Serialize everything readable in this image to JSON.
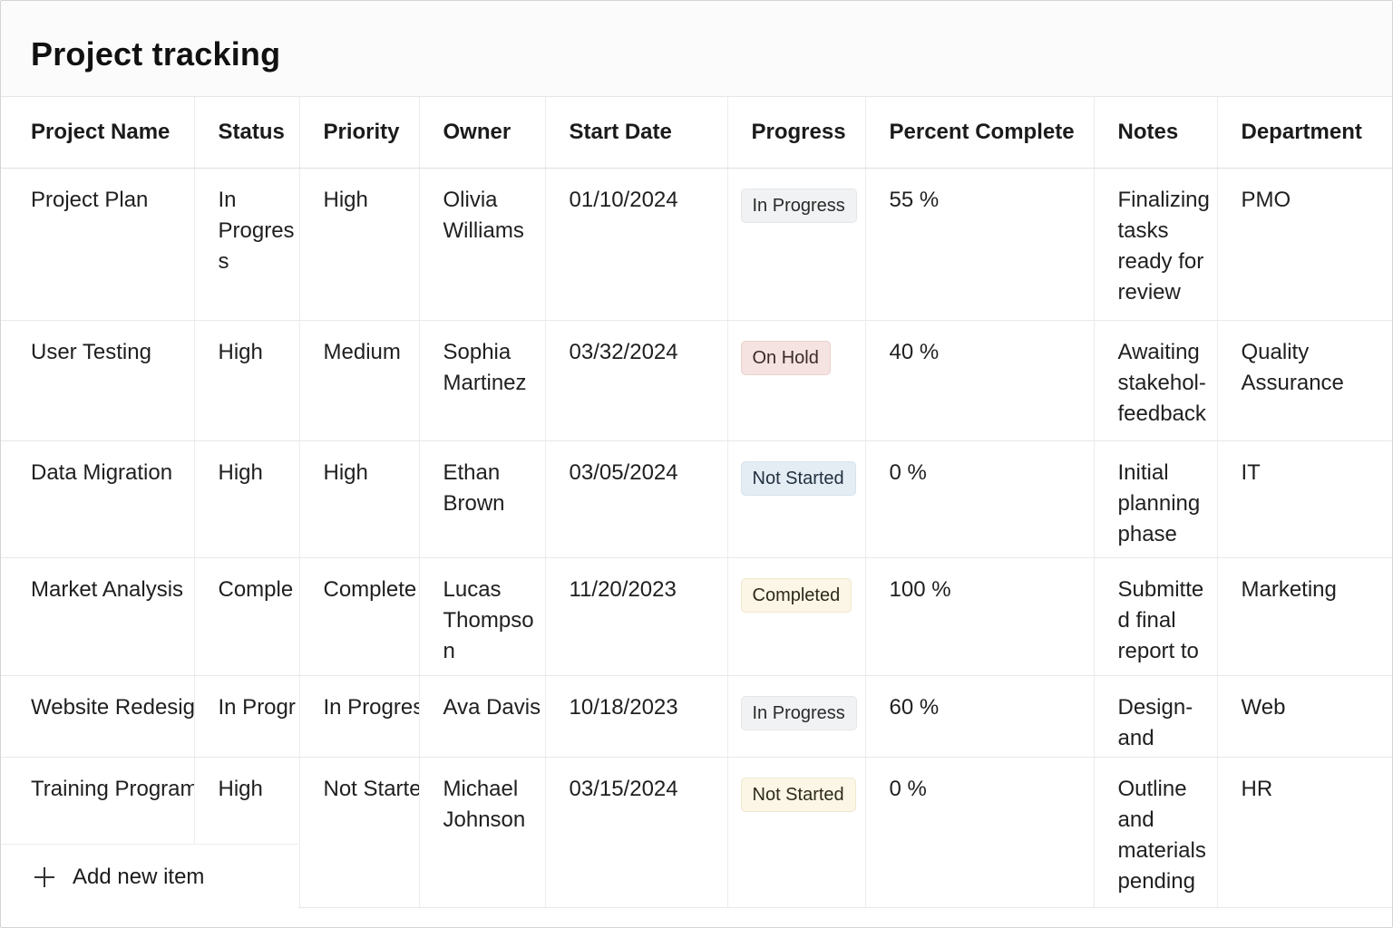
{
  "page": {
    "title": "Project tracking"
  },
  "table": {
    "columns": [
      "Project Name",
      "Status",
      "Priority",
      "Owner",
      "Start Date",
      "Progress",
      "Percent Complete",
      "Notes",
      "Department"
    ],
    "rows": [
      {
        "name": "Project Plan",
        "status": "In Progress",
        "priority": "High",
        "owner": "Olivia Williams",
        "start_date": "01/10/2024",
        "progress": "In Progress",
        "percent": "55 %",
        "notes": "Finalizing tasks ready for review",
        "department": "PMO"
      },
      {
        "name": "User Testing",
        "status": "High",
        "priority": "Medium",
        "owner": "Sophia Martinez",
        "start_date": "03/32/2024",
        "progress": "On Hold",
        "percent": "40 %",
        "notes": "Awaiting stakehol- feedback",
        "department": "Quality Assurance"
      },
      {
        "name": "Data Migration",
        "status": "High",
        "priority": "High",
        "owner": "Ethan Brown",
        "start_date": "03/05/2024",
        "progress": "Not Started",
        "percent": "0 %",
        "notes": "Initial planning phase",
        "department": "IT"
      },
      {
        "name": "Market Analysis",
        "status": "Comple",
        "priority": "Complete",
        "owner": "Lucas Thompson",
        "start_date": "11/20/2023",
        "progress": "Completed",
        "percent": "100 %",
        "notes": "Submitted final report to",
        "department": "Marketing"
      },
      {
        "name": "Website Redesig",
        "status": "In Progr",
        "priority": "In Progres",
        "owner": "Ava Davis",
        "start_date": "10/18/2023",
        "progress": "In Progress",
        "percent": "60 %",
        "notes": "Design- and",
        "department": "Web"
      },
      {
        "name": "Training Program",
        "status": "High",
        "priority": "Not Starte",
        "owner": "Michael Johnson",
        "start_date": "03/15/2024",
        "progress": "Not Started",
        "percent": "0 %",
        "notes": "Outline and materials pending",
        "department": "HR"
      }
    ]
  },
  "add_item": {
    "icon": "plus-icon",
    "label": "Add new item"
  }
}
